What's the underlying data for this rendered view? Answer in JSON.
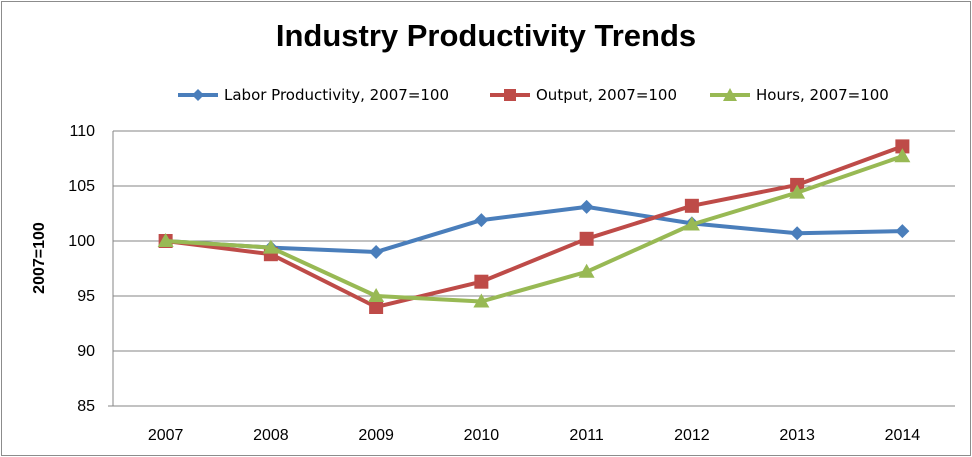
{
  "chart_data": {
    "type": "line",
    "title": "Industry Productivity Trends",
    "xlabel": "",
    "ylabel": "2007=100",
    "categories": [
      "2007",
      "2008",
      "2009",
      "2010",
      "2011",
      "2012",
      "2013",
      "2014"
    ],
    "ylim": [
      85,
      110
    ],
    "yticks": [
      85,
      90,
      95,
      100,
      105,
      110
    ],
    "grid": true,
    "legend_position": "top",
    "series": [
      {
        "name": "Labor Productivity, 2007=100",
        "color": "#4a7ebb",
        "marker": "diamond",
        "values": [
          100,
          99.4,
          99.0,
          101.9,
          103.1,
          101.6,
          100.7,
          100.9
        ]
      },
      {
        "name": "Output, 2007=100",
        "color": "#be4b48",
        "marker": "square",
        "values": [
          100,
          98.8,
          94.0,
          96.3,
          100.2,
          103.2,
          105.1,
          108.6
        ]
      },
      {
        "name": "Hours, 2007=100",
        "color": "#98b954",
        "marker": "triangle",
        "values": [
          100,
          99.4,
          95.0,
          94.5,
          97.2,
          101.5,
          104.4,
          107.7
        ]
      }
    ]
  }
}
